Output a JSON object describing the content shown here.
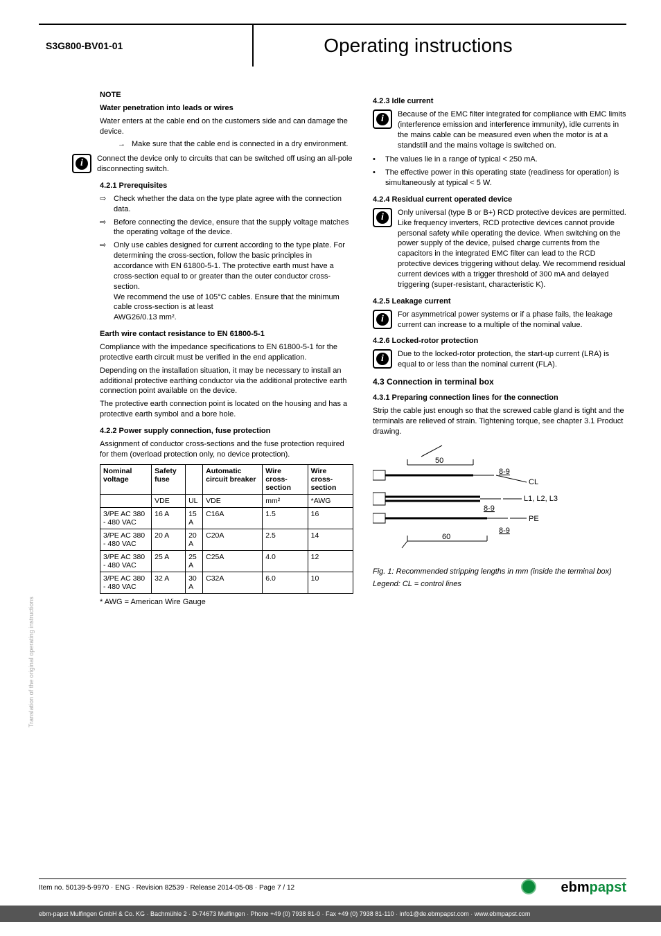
{
  "doc_code": "S3G800-BV01-01",
  "main_title": "Operating instructions",
  "side_text": "Translation of the original operating instructions",
  "left": {
    "note_label": "NOTE",
    "note_title": "Water penetration into leads or wires",
    "note_body": "Water enters at the cable end on the customers side and can damage the device.",
    "note_arrow": "Make sure that the cable end is connected in a dry environment.",
    "info1": "Connect the device only to circuits that can be switched off using an all-pole disconnecting switch.",
    "s421": "4.2.1 Prerequisites",
    "pre1": "Check whether the data on the type plate agree with the connection data.",
    "pre2": "Before connecting the device, ensure that the supply voltage matches the operating voltage of the device.",
    "pre3a": "Only use cables designed for current according to the type plate. For determining the cross-section, follow the basic principles in accordance with EN 61800-5-1. The protective earth must have a cross-section equal to or greater than the outer conductor cross-section.",
    "pre3b": "We recommend the use of 105°C cables. Ensure that the minimum cable cross-section is at least",
    "pre3c": "AWG26/0.13 mm².",
    "earth_head": "Earth wire contact resistance to EN 61800-5-1",
    "earth_p1": "Compliance with the impedance specifications to EN 61800-5-1 for the protective earth circuit must be verified in the end application.",
    "earth_p2": "Depending on the installation situation, it may be necessary to install an additional protective earthing conductor via the additional protective earth connection point available on the device.",
    "earth_p3": "The protective earth connection point is located on the housing and has a protective earth symbol and a bore hole.",
    "s422": "4.2.2 Power supply connection, fuse protection",
    "s422_p": "Assignment of conductor cross-sections and the fuse protection required for them (overload protection only, no device protection).",
    "table": {
      "headers": [
        "Nominal voltage",
        "Safety fuse",
        "",
        "Automatic circuit breaker",
        "Wire cross-section",
        "Wire cross-section"
      ],
      "subheaders": [
        "",
        "VDE",
        "UL",
        "VDE",
        "mm²",
        "*AWG"
      ],
      "rows": [
        [
          "3/PE AC 380 - 480 VAC",
          "16 A",
          "15 A",
          "C16A",
          "1.5",
          "16"
        ],
        [
          "3/PE AC 380 - 480 VAC",
          "20 A",
          "20 A",
          "C20A",
          "2.5",
          "14"
        ],
        [
          "3/PE AC 380 - 480 VAC",
          "25 A",
          "25 A",
          "C25A",
          "4.0",
          "12"
        ],
        [
          "3/PE AC 380 - 480 VAC",
          "32 A",
          "30 A",
          "C32A",
          "6.0",
          "10"
        ]
      ]
    },
    "awg_note": "* AWG = American Wire Gauge"
  },
  "right": {
    "s423": "4.2.3 Idle current",
    "s423_info": "Because of the EMC filter integrated for compliance with EMC limits (interference emission and interference immunity), idle currents in the mains cable can be measured even when the motor is at a standstill and the mains voltage is switched on.",
    "s423_b1": "The values lie in a range of typical < 250 mA.",
    "s423_b2": "The effective power in this operating state (readiness for operation) is simultaneously at typical < 5 W.",
    "s424": "4.2.4 Residual current operated device",
    "s424_info": "Only universal (type B or B+) RCD protective devices are permitted. Like frequency inverters, RCD protective devices cannot provide personal safety while operating the device. When switching on the power supply of the device, pulsed charge currents from the capacitors in the integrated EMC filter can lead to the RCD protective devices triggering without delay. We recommend residual current devices with a trigger threshold of 300 mA and delayed triggering (super-resistant, characteristic K).",
    "s425": "4.2.5 Leakage current",
    "s425_info": "For asymmetrical power systems or if a phase fails, the leakage current can increase to a multiple of the nominal value.",
    "s426": "4.2.6 Locked-rotor protection",
    "s426_info": "Due to the locked-rotor protection, the start-up current (LRA) is equal to or less than the nominal current (FLA).",
    "s43": "4.3 Connection in terminal box",
    "s431": "4.3.1 Preparing connection lines for the connection",
    "s431_p": "Strip the cable just enough so that the screwed cable gland is tight and the terminals are relieved of strain. Tightening torque, see chapter 3.1 Product drawing.",
    "diagram": {
      "dim_top": "50",
      "strip1": "8-9",
      "lbl_cl": "CL",
      "lbl_l": "L1, L2, L3",
      "strip2": "8-9",
      "lbl_pe": "PE",
      "strip3": "8-9",
      "dim_bottom": "60"
    },
    "fig_caption": "Fig. 1: Recommended stripping lengths in mm (inside the terminal box)",
    "fig_legend": "Legend: CL = control lines"
  },
  "footer": {
    "item": "Item no. 50139-5-9970 · ENG · Revision 82539 · Release 2014-05-08 · Page 7 / 12",
    "logo1": "ebm",
    "logo2": "papst",
    "bottom": "ebm-papst Mulfingen GmbH & Co. KG · Bachmühle 2 · D-74673 Mulfingen · Phone +49 (0) 7938 81-0 · Fax +49 (0) 7938 81-110 · info1@de.ebmpapst.com · www.ebmpapst.com"
  }
}
